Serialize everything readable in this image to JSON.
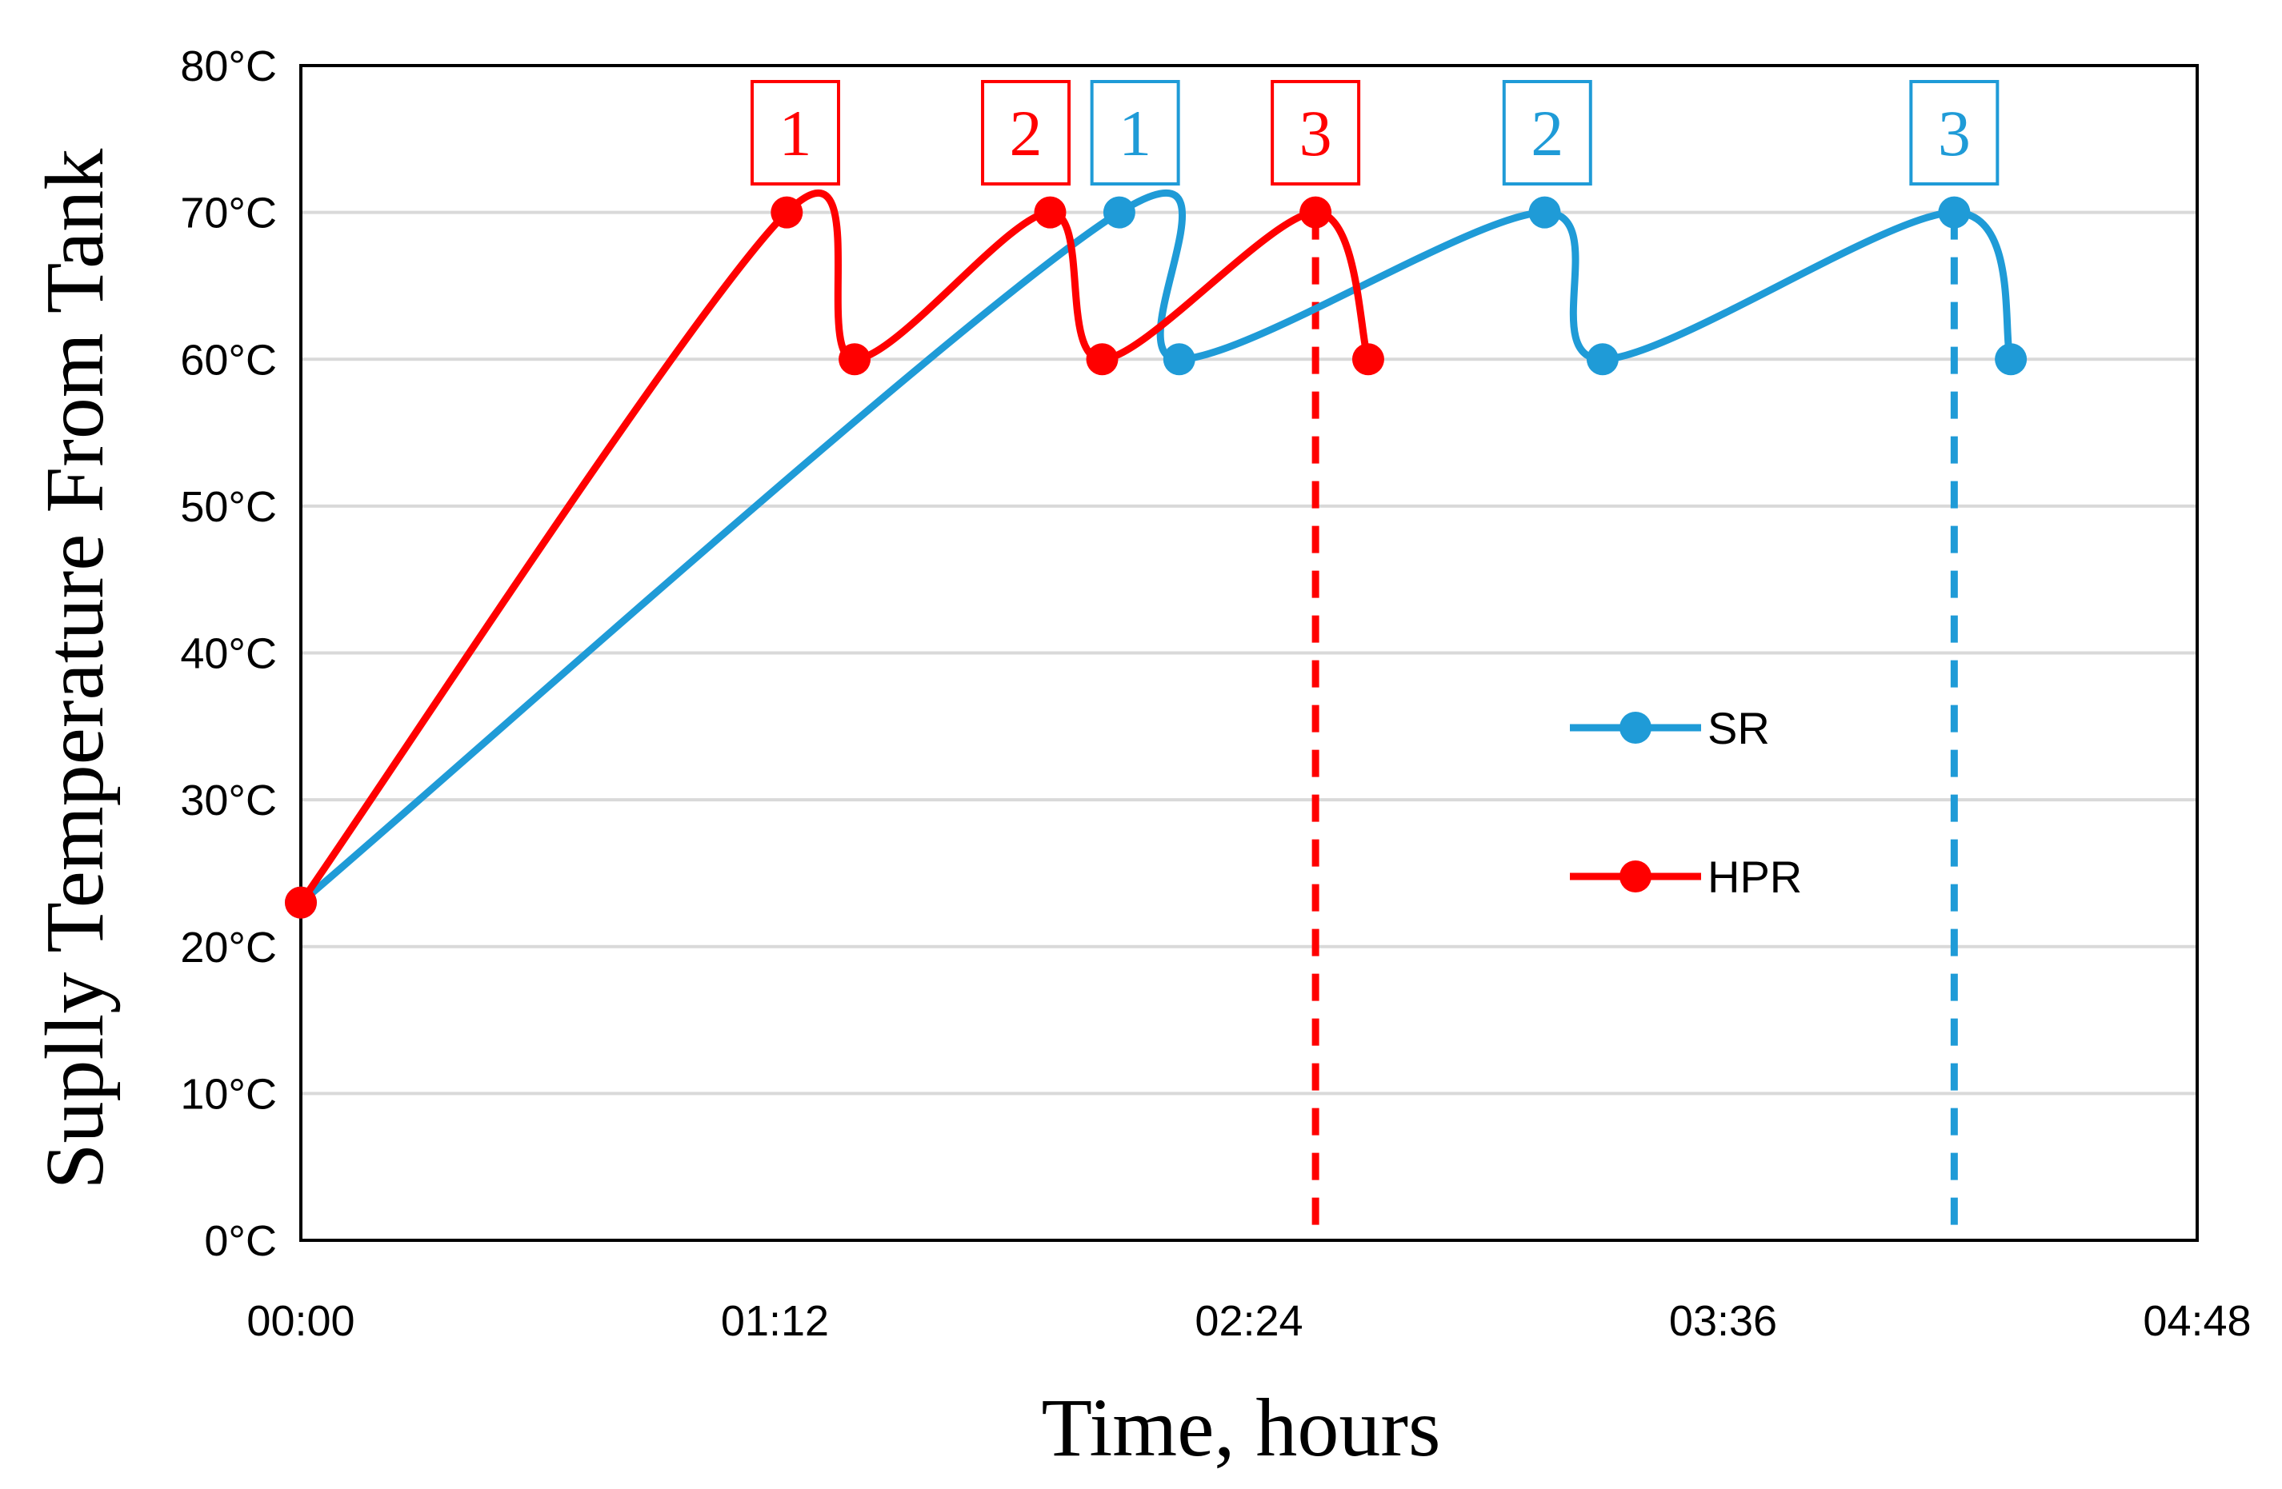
{
  "chart_data": {
    "type": "line",
    "title": "",
    "xlabel": "Time, hours",
    "ylabel": "Suplly Temperature From Tank",
    "x_unit": "minutes",
    "xlim": [
      0,
      288
    ],
    "ylim": [
      0,
      80
    ],
    "x_ticks": [
      "00:00",
      "01:12",
      "02:24",
      "03:36",
      "04:48"
    ],
    "y_ticks": [
      "0°C",
      "10°C",
      "20°C",
      "30°C",
      "40°C",
      "50°C",
      "60°C",
      "70°C",
      "80°C"
    ],
    "grid": "horizontal",
    "legend_position": "center-right",
    "series": [
      {
        "name": "SR",
        "color": "#1f9bd7",
        "x": [
          0,
          124.3,
          133.4,
          188.9,
          197.7,
          251.1,
          259.7
        ],
        "y": [
          23,
          70,
          60,
          70,
          60,
          70,
          60
        ]
      },
      {
        "name": "HPR",
        "color": "#ff0000",
        "x": [
          0,
          73.8,
          84.1,
          113.8,
          121.7,
          154.1,
          162.1
        ],
        "y": [
          23,
          70,
          60,
          70,
          60,
          70,
          60
        ]
      }
    ],
    "annotations": [
      {
        "label": "1",
        "series": "HPR",
        "x": 75.1,
        "y": 70
      },
      {
        "label": "2",
        "series": "HPR",
        "x": 110.1,
        "y": 70
      },
      {
        "label": "3",
        "series": "HPR",
        "x": 154.1,
        "y": 70
      },
      {
        "label": "1",
        "series": "SR",
        "x": 126.7,
        "y": 70
      },
      {
        "label": "2",
        "series": "SR",
        "x": 189.3,
        "y": 70
      },
      {
        "label": "3",
        "series": "SR",
        "x": 251.1,
        "y": 70
      }
    ],
    "vlines": [
      {
        "series": "HPR",
        "x": 154.1,
        "y_top": 70
      },
      {
        "series": "SR",
        "x": 251.1,
        "y_top": 70
      }
    ]
  }
}
